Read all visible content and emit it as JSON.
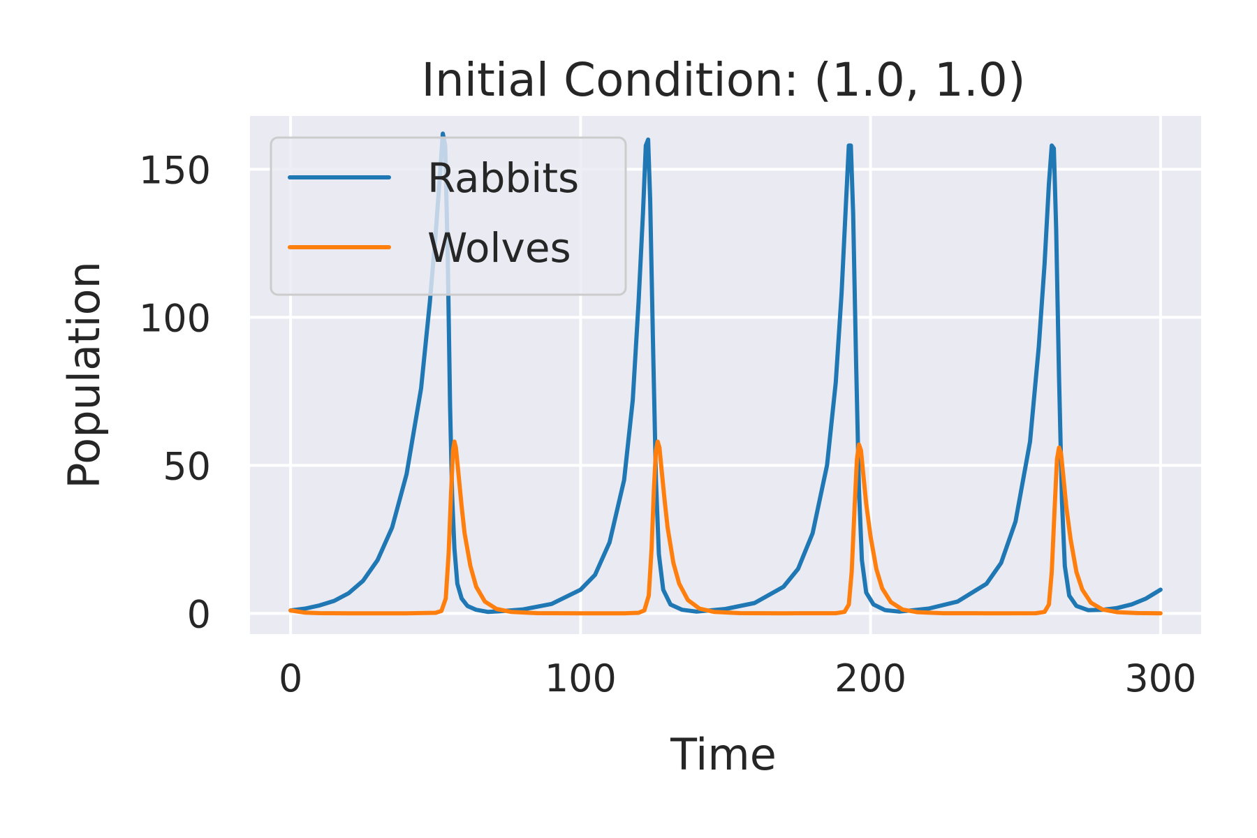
{
  "chart_data": {
    "type": "line",
    "title": "Initial Condition: (1.0, 1.0)",
    "xlabel": "Time",
    "ylabel": "Population",
    "xlim": [
      -14,
      314
    ],
    "ylim": [
      -7,
      168
    ],
    "xticks": [
      0,
      100,
      200,
      300
    ],
    "yticks": [
      0,
      50,
      100,
      150
    ],
    "grid": true,
    "legend": {
      "position": "top-left"
    },
    "series": [
      {
        "name": "Rabbits",
        "color": "#1f77b4",
        "points": [
          [
            0,
            1.0
          ],
          [
            5,
            1.6
          ],
          [
            10,
            2.7
          ],
          [
            15,
            4.2
          ],
          [
            20,
            6.8
          ],
          [
            25,
            11
          ],
          [
            30,
            18
          ],
          [
            35,
            29
          ],
          [
            40,
            47
          ],
          [
            45,
            76
          ],
          [
            48,
            105
          ],
          [
            50,
            128
          ],
          [
            51.5,
            148
          ],
          [
            52.5,
            162
          ],
          [
            53.3,
            158
          ],
          [
            54.2,
            120
          ],
          [
            55,
            70
          ],
          [
            55.7,
            40
          ],
          [
            56.5,
            22
          ],
          [
            57.5,
            10
          ],
          [
            59,
            5
          ],
          [
            61,
            2.5
          ],
          [
            64,
            1.2
          ],
          [
            68,
            0.5
          ],
          [
            72,
            0.7
          ],
          [
            80,
            1.3
          ],
          [
            90,
            3.2
          ],
          [
            100,
            8
          ],
          [
            105,
            13
          ],
          [
            110,
            24
          ],
          [
            115,
            45
          ],
          [
            118,
            72
          ],
          [
            120,
            105
          ],
          [
            121.5,
            135
          ],
          [
            122.5,
            158
          ],
          [
            123.3,
            160
          ],
          [
            124,
            140
          ],
          [
            125,
            90
          ],
          [
            126,
            45
          ],
          [
            127,
            20
          ],
          [
            128.5,
            8
          ],
          [
            131,
            3
          ],
          [
            135,
            1.2
          ],
          [
            140,
            0.6
          ],
          [
            150,
            1.5
          ],
          [
            160,
            3.5
          ],
          [
            170,
            9
          ],
          [
            175,
            15
          ],
          [
            180,
            27
          ],
          [
            185,
            50
          ],
          [
            188,
            78
          ],
          [
            190,
            108
          ],
          [
            191.5,
            138
          ],
          [
            192.5,
            158
          ],
          [
            193.2,
            158
          ],
          [
            194,
            135
          ],
          [
            195,
            85
          ],
          [
            196,
            42
          ],
          [
            197,
            18
          ],
          [
            198.5,
            7
          ],
          [
            201,
            3
          ],
          [
            205,
            1.1
          ],
          [
            210,
            0.6
          ],
          [
            220,
            1.6
          ],
          [
            230,
            4
          ],
          [
            240,
            10
          ],
          [
            245,
            17
          ],
          [
            250,
            31
          ],
          [
            255,
            58
          ],
          [
            258,
            90
          ],
          [
            260,
            118
          ],
          [
            261.5,
            145
          ],
          [
            262.5,
            158
          ],
          [
            263.2,
            157
          ],
          [
            264,
            130
          ],
          [
            265,
            80
          ],
          [
            266,
            38
          ],
          [
            267,
            16
          ],
          [
            268.5,
            6
          ],
          [
            271,
            2.5
          ],
          [
            275,
            1.1
          ],
          [
            280,
            1.2
          ],
          [
            285,
            1.8
          ],
          [
            290,
            3
          ],
          [
            295,
            5
          ],
          [
            300,
            8
          ]
        ]
      },
      {
        "name": "Wolves",
        "color": "#ff7f0e",
        "points": [
          [
            0,
            1.0
          ],
          [
            5,
            0.25
          ],
          [
            10,
            0.08
          ],
          [
            20,
            0.02
          ],
          [
            40,
            0.02
          ],
          [
            50,
            0.2
          ],
          [
            52,
            0.8
          ],
          [
            53.5,
            5
          ],
          [
            54.5,
            20
          ],
          [
            55.3,
            40
          ],
          [
            56,
            55
          ],
          [
            56.5,
            58
          ],
          [
            57,
            56
          ],
          [
            58,
            46
          ],
          [
            59,
            36
          ],
          [
            60,
            27
          ],
          [
            62,
            16
          ],
          [
            64,
            9
          ],
          [
            67,
            4
          ],
          [
            71,
            1.5
          ],
          [
            76,
            0.5
          ],
          [
            85,
            0.08
          ],
          [
            100,
            0.02
          ],
          [
            115,
            0.03
          ],
          [
            120,
            0.2
          ],
          [
            122,
            1
          ],
          [
            123.5,
            6
          ],
          [
            124.5,
            22
          ],
          [
            125.3,
            42
          ],
          [
            126,
            55
          ],
          [
            126.6,
            58
          ],
          [
            127.2,
            56
          ],
          [
            128,
            48
          ],
          [
            129,
            38
          ],
          [
            130,
            29
          ],
          [
            132,
            17
          ],
          [
            134,
            10
          ],
          [
            137,
            4.5
          ],
          [
            141,
            1.6
          ],
          [
            146,
            0.5
          ],
          [
            155,
            0.08
          ],
          [
            170,
            0.02
          ],
          [
            188,
            0.05
          ],
          [
            191,
            0.5
          ],
          [
            192.5,
            3
          ],
          [
            193.5,
            14
          ],
          [
            194.5,
            36
          ],
          [
            195.3,
            52
          ],
          [
            196,
            57
          ],
          [
            196.7,
            55
          ],
          [
            197.5,
            47
          ],
          [
            198.5,
            37
          ],
          [
            200,
            26
          ],
          [
            202,
            15
          ],
          [
            204,
            8.5
          ],
          [
            207,
            3.8
          ],
          [
            211,
            1.3
          ],
          [
            216,
            0.4
          ],
          [
            225,
            0.06
          ],
          [
            240,
            0.02
          ],
          [
            257,
            0.06
          ],
          [
            260,
            0.5
          ],
          [
            261.5,
            3
          ],
          [
            262.5,
            14
          ],
          [
            263.5,
            36
          ],
          [
            264.3,
            52
          ],
          [
            265,
            56
          ],
          [
            265.7,
            54
          ],
          [
            266.5,
            46
          ],
          [
            267.5,
            36
          ],
          [
            269,
            25
          ],
          [
            271,
            14
          ],
          [
            273,
            8
          ],
          [
            276,
            3.6
          ],
          [
            280,
            1.3
          ],
          [
            285,
            0.4
          ],
          [
            292,
            0.1
          ],
          [
            300,
            0.03
          ]
        ]
      }
    ]
  }
}
